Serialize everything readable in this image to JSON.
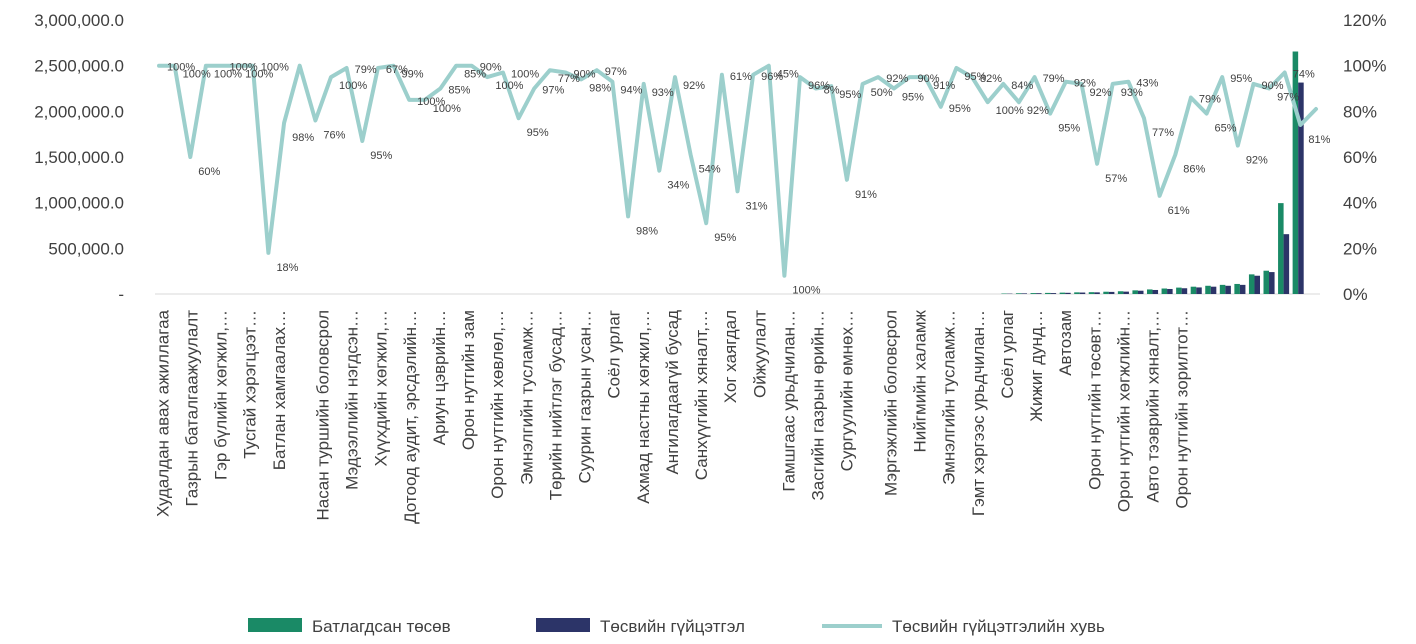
{
  "chart_data": {
    "type": "bar",
    "y_left": {
      "ticks": [
        "-",
        "500,000.0",
        "1,000,000.0",
        "1,500,000.0",
        "2,000,000.0",
        "2,500,000.0",
        "3,000,000.0"
      ],
      "max": 3000000
    },
    "y_right": {
      "ticks": [
        "0%",
        "20%",
        "40%",
        "60%",
        "80%",
        "100%",
        "120%"
      ],
      "max": 120
    },
    "category_count": 80,
    "x_tick_labels": [
      "Худалдан авах ажиллагаа",
      "Газрын баталгаажуулалт",
      "Гэр бүлийн хөгжил,…",
      "Тусгай хэрэгцээт…",
      "Батлан хамгаалах…",
      "Насан туршийн боловсрол",
      "Мэдээллийн нэгдсэн…",
      "Хүүхдийн хөгжил,…",
      "Дотоод аудит, эрсдэлийн…",
      "Ариун цэврийн…",
      "Орон нутгийн зам",
      "Орон нутгийн хөвлөл,…",
      "Эмнэлгийн тусламж…",
      "Төрийн нийтлэг бусад…",
      "Суурин газрын усан…",
      "Соёл урлаг",
      "Ахмад настны хөгжил,…",
      "Ангилагдаагүй бусад",
      "Санхүүгийн хяналт,…",
      "Хог хаягдал",
      "Ойжуулалт",
      "Гамшгаас урьдчилан…",
      "Засгийн газрын өрийн…",
      "Сургуулийн өмнөх…",
      "Мэргэжлийн боловсрол",
      "Нийгмийн халамж",
      "Эмнэлгийн тусламж…",
      "Гэмт хэргээс урьдчилан…",
      "Соёл урлаг",
      "Жижиг дунд…",
      "Автозам",
      "Орон нутгийн төсөвт…",
      "Орон нутгийн хөгжлийн…",
      "Авто тээврийн хяналт,…",
      "Орон нутгийн зорилтот…"
    ],
    "x_tick_label_positions": [
      0,
      2,
      4,
      6,
      8,
      11,
      13,
      15,
      17,
      19,
      21,
      23,
      25,
      27,
      29,
      31,
      33,
      35,
      37,
      39,
      41,
      43,
      45,
      47,
      50,
      52,
      54,
      56,
      58,
      60,
      62,
      64,
      66,
      68,
      70
    ],
    "series": [
      {
        "name": "Батлагдсан төсөв",
        "color": "#1a8a66",
        "values": [
          0,
          0,
          0,
          0,
          0,
          0,
          0,
          0,
          0,
          0,
          0,
          0,
          0,
          0,
          0,
          0,
          0,
          0,
          0,
          0,
          0,
          0,
          0,
          0,
          0,
          0,
          0,
          0,
          0,
          0,
          0,
          0,
          0,
          0,
          0,
          0,
          0,
          0,
          0,
          0,
          0,
          0,
          0,
          0,
          0,
          0,
          0,
          0,
          0,
          0,
          0,
          0,
          0,
          0,
          0,
          0,
          0,
          0,
          5000,
          8000,
          10000,
          12000,
          15000,
          18000,
          20000,
          25000,
          30000,
          40000,
          50000,
          60000,
          70000,
          80000,
          90000,
          100000,
          110000,
          215000,
          255000,
          995000,
          2655000,
          0
        ]
      },
      {
        "name": "Төсвийн гүйцэтгэл",
        "color": "#2c3468",
        "values": [
          0,
          0,
          0,
          0,
          0,
          0,
          0,
          0,
          0,
          0,
          0,
          0,
          0,
          0,
          0,
          0,
          0,
          0,
          0,
          0,
          0,
          0,
          0,
          0,
          0,
          0,
          0,
          0,
          0,
          0,
          0,
          0,
          0,
          0,
          0,
          0,
          0,
          0,
          0,
          0,
          0,
          0,
          0,
          0,
          0,
          0,
          0,
          0,
          0,
          0,
          0,
          0,
          0,
          0,
          0,
          0,
          0,
          0,
          4000,
          7000,
          9000,
          10000,
          13000,
          16000,
          18000,
          23000,
          26000,
          36000,
          44000,
          55000,
          63000,
          72000,
          80000,
          90000,
          100000,
          200000,
          240000,
          655000,
          2315000,
          0
        ]
      },
      {
        "name": "Төсвийн гүйцэтгэлийн хувь",
        "color": "#9ccfcc",
        "values": [
          100,
          100,
          60,
          100,
          100,
          100,
          100,
          18,
          75,
          100,
          76,
          95,
          99,
          67,
          99,
          100,
          85,
          85,
          90,
          100,
          100,
          95,
          97,
          77,
          90,
          98,
          97,
          94,
          98,
          93,
          34,
          92,
          54,
          95,
          61,
          31,
          96,
          45,
          96,
          100,
          8,
          95,
          90,
          91,
          50,
          92,
          95,
          90,
          95,
          95,
          82,
          99,
          95,
          84,
          92,
          84,
          95,
          79,
          93,
          92,
          57,
          92,
          93,
          77,
          43,
          61,
          86,
          79,
          95,
          65,
          92,
          90,
          97,
          74,
          81,
          0,
          0,
          0,
          0,
          0
        ],
        "points": 75
      }
    ],
    "point_labels": [
      {
        "i": 0,
        "t": "100%"
      },
      {
        "i": 1,
        "t": "100%"
      },
      {
        "i": 2,
        "t": "60%"
      },
      {
        "i": 3,
        "t": "100%"
      },
      {
        "i": 4,
        "t": "100%"
      },
      {
        "i": 5,
        "t": "100%"
      },
      {
        "i": 6,
        "t": "100%"
      },
      {
        "i": 7,
        "t": "18%"
      },
      {
        "i": 8,
        "t": "98%"
      },
      {
        "i": 10,
        "t": "76%"
      },
      {
        "i": 11,
        "t": "100%"
      },
      {
        "i": 12,
        "t": "79%"
      },
      {
        "i": 13,
        "t": "95%"
      },
      {
        "i": 14,
        "t": "67%"
      },
      {
        "i": 15,
        "t": "99%"
      },
      {
        "i": 16,
        "t": "100%"
      },
      {
        "i": 17,
        "t": "100%"
      },
      {
        "i": 18,
        "t": "85%"
      },
      {
        "i": 19,
        "t": "85%"
      },
      {
        "i": 20,
        "t": "90%"
      },
      {
        "i": 21,
        "t": "100%"
      },
      {
        "i": 22,
        "t": "100%"
      },
      {
        "i": 23,
        "t": "95%"
      },
      {
        "i": 24,
        "t": "97%"
      },
      {
        "i": 25,
        "t": "77%"
      },
      {
        "i": 26,
        "t": "90%"
      },
      {
        "i": 27,
        "t": "98%"
      },
      {
        "i": 28,
        "t": "97%"
      },
      {
        "i": 29,
        "t": "94%"
      },
      {
        "i": 30,
        "t": "98%"
      },
      {
        "i": 31,
        "t": "93%"
      },
      {
        "i": 32,
        "t": "34%"
      },
      {
        "i": 33,
        "t": "92%"
      },
      {
        "i": 34,
        "t": "54%"
      },
      {
        "i": 35,
        "t": "95%"
      },
      {
        "i": 36,
        "t": "61%"
      },
      {
        "i": 37,
        "t": "31%"
      },
      {
        "i": 38,
        "t": "96%"
      },
      {
        "i": 39,
        "t": "45%"
      },
      {
        "i": 40,
        "t": "100%"
      },
      {
        "i": 41,
        "t": "96%"
      },
      {
        "i": 42,
        "t": "8%"
      },
      {
        "i": 43,
        "t": "95%"
      },
      {
        "i": 44,
        "t": "91%"
      },
      {
        "i": 45,
        "t": "50%"
      },
      {
        "i": 46,
        "t": "92%"
      },
      {
        "i": 47,
        "t": "95%"
      },
      {
        "i": 48,
        "t": "90%"
      },
      {
        "i": 49,
        "t": "91%"
      },
      {
        "i": 50,
        "t": "95%"
      },
      {
        "i": 51,
        "t": "95%"
      },
      {
        "i": 52,
        "t": "82%"
      },
      {
        "i": 53,
        "t": "100%"
      },
      {
        "i": 54,
        "t": "84%"
      },
      {
        "i": 55,
        "t": "92%"
      },
      {
        "i": 56,
        "t": "79%"
      },
      {
        "i": 57,
        "t": "95%"
      },
      {
        "i": 58,
        "t": "92%"
      },
      {
        "i": 59,
        "t": "92%"
      },
      {
        "i": 60,
        "t": "57%"
      },
      {
        "i": 61,
        "t": "93%"
      },
      {
        "i": 62,
        "t": "43%"
      },
      {
        "i": 63,
        "t": "77%"
      },
      {
        "i": 64,
        "t": "61%"
      },
      {
        "i": 65,
        "t": "86%"
      },
      {
        "i": 66,
        "t": "79%"
      },
      {
        "i": 67,
        "t": "65%"
      },
      {
        "i": 68,
        "t": "95%"
      },
      {
        "i": 69,
        "t": "92%"
      },
      {
        "i": 70,
        "t": "90%"
      },
      {
        "i": 71,
        "t": "97%"
      },
      {
        "i": 72,
        "t": "74%"
      },
      {
        "i": 73,
        "t": "81%"
      }
    ],
    "legend": [
      {
        "label": "Батлагдсан төсөв",
        "kind": "bar",
        "color": "#1a8a66"
      },
      {
        "label": "Төсвийн гүйцэтгэл",
        "kind": "bar",
        "color": "#2c3468"
      },
      {
        "label": "Төсвийн гүйцэтгэлийн хувь",
        "kind": "line",
        "color": "#9ccfcc"
      }
    ],
    "legend_position": "bottom",
    "grid": false
  }
}
